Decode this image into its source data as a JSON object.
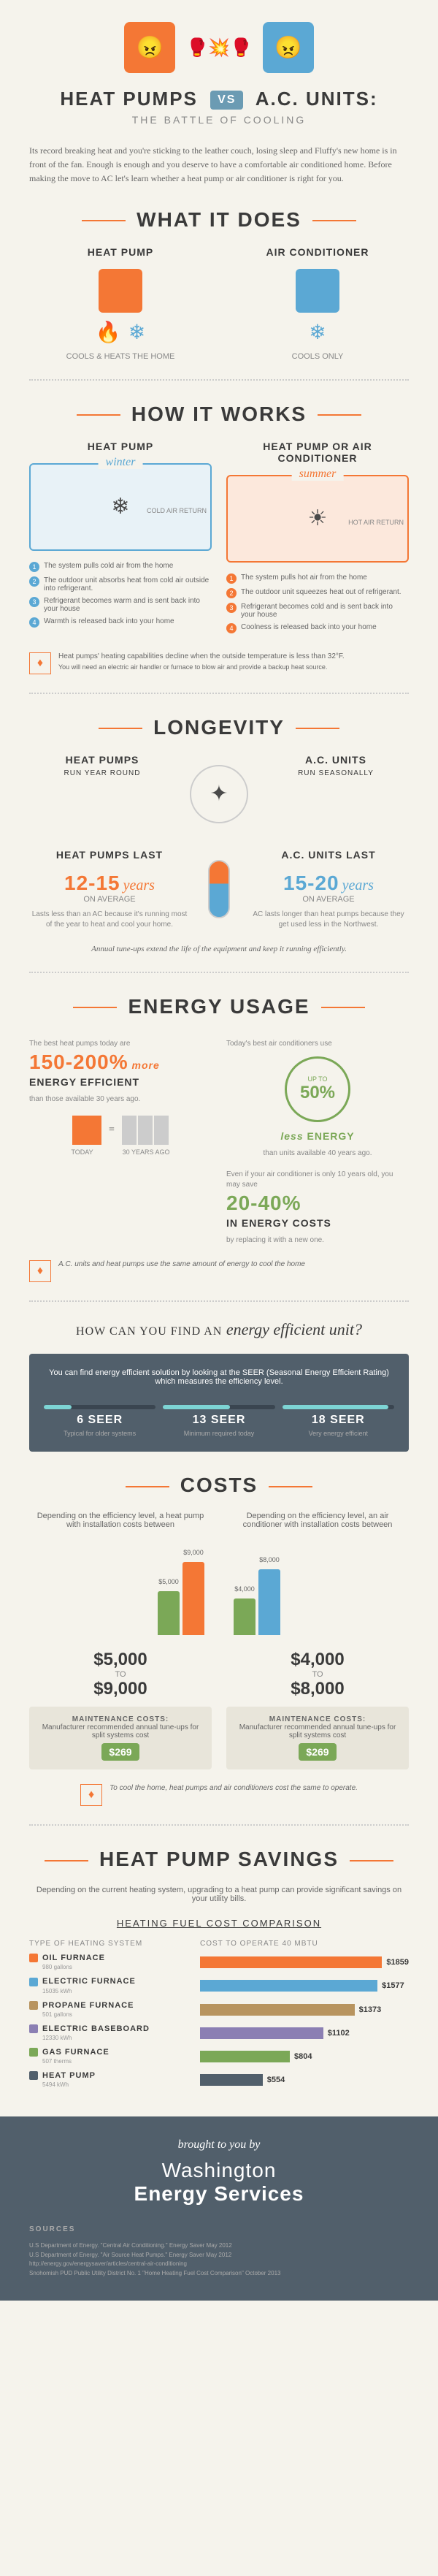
{
  "header": {
    "title_left": "HEAT PUMPS",
    "title_right": "A.C. UNITS:",
    "vs": "VS",
    "subtitle": "THE BATTLE OF COOLING",
    "intro": "Its record breaking heat and you're sticking to the leather couch, losing sleep and Fluffy's new home is in front of the fan. Enough is enough and you deserve to have a comfortable air conditioned home. Before making the move to AC let's learn whether a heat pump or air conditioner is right for you."
  },
  "what_it_does": {
    "title": "WHAT IT DOES",
    "heat_pump": {
      "label": "HEAT PUMP",
      "desc": "COOLS & HEATS THE HOME"
    },
    "ac": {
      "label": "AIR CONDITIONER",
      "desc": "COOLS ONLY"
    }
  },
  "how_it_works": {
    "title": "HOW IT WORKS",
    "left_label": "HEAT PUMP",
    "right_label": "HEAT PUMP OR AIR CONDITIONER",
    "winter": {
      "label": "winter",
      "side": "COLD AIR RETURN",
      "steps": [
        "The system pulls cold air from the home",
        "The outdoor unit absorbs heat from cold air outside into refrigerant.",
        "Refrigerant becomes warm and is sent back into your house",
        "Warmth is released back into your home"
      ]
    },
    "summer": {
      "label": "summer",
      "side": "HOT AIR RETURN",
      "steps": [
        "The system pulls hot air from the home",
        "The outdoor unit squeezes heat out of refrigerant.",
        "Refrigerant becomes cold and is sent back into your house",
        "Coolness is released back into your home"
      ]
    },
    "note": "Heat pumps' heating capabilities decline when the outside temperature is less than 32°F.",
    "note2": "You will need an electric air handler or furnace to blow air and provide a backup heat source."
  },
  "longevity": {
    "title": "LONGEVITY",
    "hp": {
      "label": "HEAT PUMPS",
      "sub": "RUN YEAR ROUND",
      "lasts": "HEAT PUMPS LAST",
      "range": "12-15",
      "years": "years",
      "avg": "ON AVERAGE",
      "note": "Lasts less than an AC because it's running most of the year to heat and cool your home."
    },
    "ac": {
      "label": "A.C. UNITS",
      "sub": "RUN SEASONALLY",
      "lasts": "A.C. UNITS LAST",
      "range": "15-20",
      "years": "years",
      "avg": "ON AVERAGE",
      "note": "AC lasts longer than heat pumps because they get used less in the Northwest."
    },
    "tip": "Annual tune-ups extend the life of the equipment and keep it running efficiently."
  },
  "energy": {
    "title": "ENERGY USAGE",
    "hp_lead": "The best heat pumps today are",
    "hp_pct": "150-200%",
    "hp_more": "more",
    "hp_eff": "ENERGY EFFICIENT",
    "hp_than": "than those available 30 years ago.",
    "ac_lead": "Today's best air conditioners use",
    "ac_upto": "UP TO",
    "ac_pct": "50%",
    "ac_less": "less",
    "ac_energy": "ENERGY",
    "ac_than": "than units available 40 years ago.",
    "today": "TODAY",
    "ago": "30 YEARS AGO",
    "replace_lead": "Even if your air conditioner is only 10 years old, you may save",
    "replace_pct": "20-40%",
    "replace_desc": "IN ENERGY COSTS",
    "replace_by": "by replacing it with a new one.",
    "note": "A.C. units and heat pumps use the same amount of energy to cool the home"
  },
  "seer": {
    "title": "HOW CAN YOU FIND AN",
    "title_em": "energy efficient unit?",
    "intro": "You can find energy efficient solution by looking at the SEER (Seasonal Energy Efficient Rating) which measures the efficiency level.",
    "items": [
      {
        "num": "6 SEER",
        "desc": "Typical for older systems",
        "fill": 25
      },
      {
        "num": "13 SEER",
        "desc": "Minimum required today",
        "fill": 60
      },
      {
        "num": "18 SEER",
        "desc": "Very energy efficient",
        "fill": 95
      }
    ]
  },
  "costs": {
    "title": "COSTS",
    "hp": {
      "lead": "Depending on the efficiency level, a heat pump with installation costs between",
      "low": "$5,000",
      "to": "TO",
      "high": "$9,000"
    },
    "ac": {
      "lead": "Depending on the efficiency level, an air conditioner with installation costs between",
      "low": "$4,000",
      "to": "TO",
      "high": "$8,000"
    },
    "bars": {
      "hp_low": {
        "h": 60,
        "color": "#7ba857",
        "label": "$5,000"
      },
      "hp_high": {
        "h": 100,
        "color": "#f47735",
        "label": "$9,000"
      },
      "ac_low": {
        "h": 50,
        "color": "#7ba857",
        "label": "$4,000"
      },
      "ac_high": {
        "h": 90,
        "color": "#5ba8d4",
        "label": "$8,000"
      }
    },
    "maint": {
      "label": "MAINTENANCE COSTS:",
      "desc": "Manufacturer recommended annual tune-ups for split systems cost",
      "price": "$269"
    },
    "tip": "To cool the home, heat pumps and air conditioners cost the same to operate."
  },
  "savings": {
    "title": "HEAT PUMP SAVINGS",
    "intro": "Depending on the current heating system, upgrading to a heat pump can provide significant savings on your utility bills.",
    "table_title": "HEATING FUEL COST COMPARISON",
    "col1": "TYPE OF HEATING SYSTEM",
    "col2": "COST TO OPERATE 40 MBTU",
    "rows": [
      {
        "name": "OIL FURNACE",
        "unit": "980 gallons",
        "cost": "$1859",
        "width": 100,
        "color": "#f47735"
      },
      {
        "name": "ELECTRIC FURNACE",
        "unit": "15035 kWh",
        "cost": "$1577",
        "width": 85,
        "color": "#5ba8d4"
      },
      {
        "name": "PROPANE FURNACE",
        "unit": "501 gallons",
        "cost": "$1373",
        "width": 74,
        "color": "#b8945f"
      },
      {
        "name": "ELECTRIC BASEBOARD",
        "unit": "12330 kWh",
        "cost": "$1102",
        "width": 59,
        "color": "#8b7fb3"
      },
      {
        "name": "GAS FURNACE",
        "unit": "507 therms",
        "cost": "$804",
        "width": 43,
        "color": "#7ba857"
      },
      {
        "name": "HEAT PUMP",
        "unit": "5494 kWh",
        "cost": "$554",
        "width": 30,
        "color": "#515f6b"
      }
    ]
  },
  "footer": {
    "brought": "brought to you by",
    "logo1": "Washington",
    "logo2": "Energy Services",
    "sources_title": "SOURCES",
    "sources": [
      "U.S Department of Energy. \"Central Air Conditioning.\" Energy Saver May 2012",
      "U.S Department of Energy. \"Air Source Heat Pumps.\" Energy Saver May 2012",
      "http://energy.gov/energysaver/articles/central-air-conditioning",
      "Snohomish PUD Public Utility District No. 1 \"Home Heating Fuel Cost Comparison\" October 2013"
    ]
  }
}
